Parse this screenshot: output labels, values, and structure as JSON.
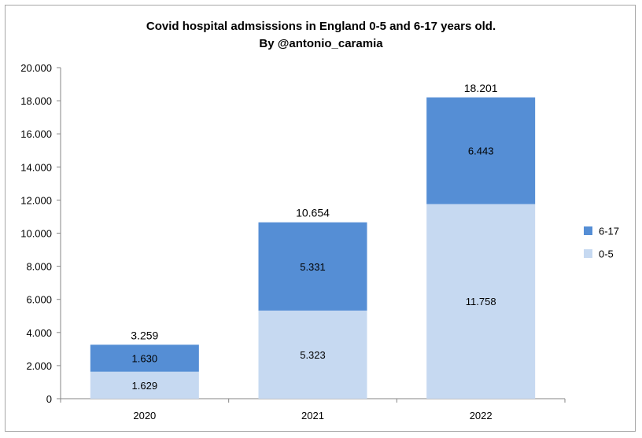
{
  "chart_data": {
    "type": "bar",
    "stacked": true,
    "title": "Covid hospital admsissions in England 0-5 and 6-17 years old.",
    "subtitle": "By  @antonio_caramia",
    "categories": [
      "2020",
      "2021",
      "2022"
    ],
    "series": [
      {
        "name": "0-5",
        "values": [
          1629,
          5323,
          11758
        ],
        "labels": [
          "1.629",
          "5.323",
          "11.758"
        ],
        "color": "#c6d9f1"
      },
      {
        "name": "6-17",
        "values": [
          1630,
          5331,
          6443
        ],
        "labels": [
          "1.630",
          "5.331",
          "6.443"
        ],
        "color": "#558ed5"
      }
    ],
    "totals": {
      "values": [
        3259,
        10654,
        18201
      ],
      "labels": [
        "3.259",
        "10.654",
        "18.201"
      ]
    },
    "ylim": [
      0,
      20000
    ],
    "yticks": [
      0,
      2000,
      4000,
      6000,
      8000,
      10000,
      12000,
      14000,
      16000,
      18000,
      20000
    ],
    "ytick_labels": [
      "0",
      "2.000",
      "4.000",
      "6.000",
      "8.000",
      "10.000",
      "12.000",
      "14.000",
      "16.000",
      "18.000",
      "20.000"
    ],
    "grid": false,
    "legend": {
      "position": "right",
      "entries": [
        "6-17",
        "0-5"
      ]
    }
  }
}
